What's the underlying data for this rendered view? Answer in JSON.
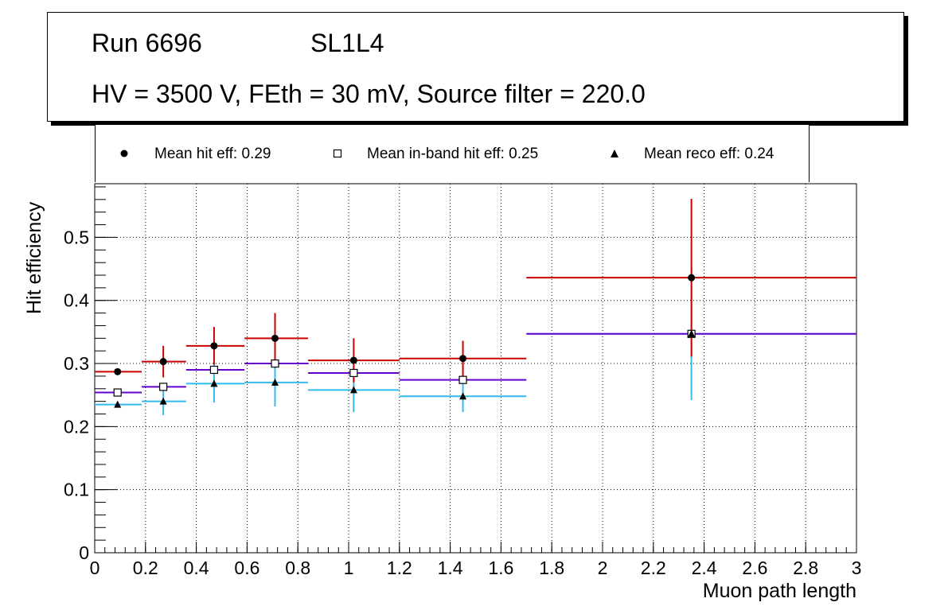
{
  "header": {
    "run": "Run 6696",
    "layer": "SL1L4",
    "conditions": "HV = 3500 V, FEth = 30 mV, Source filter = 220.0"
  },
  "legend": {
    "items": [
      {
        "label": "Mean hit  eff: 0.29",
        "marker": "filled-circle"
      },
      {
        "label": "Mean in-band hit eff: 0.25",
        "marker": "open-square"
      },
      {
        "label": "Mean reco eff: 0.24",
        "marker": "filled-triangle"
      }
    ]
  },
  "chart_data": {
    "type": "scatter",
    "xlabel": "Muon path length",
    "ylabel": "Hit efficiency",
    "xlim": [
      0,
      3
    ],
    "ylim": [
      0,
      0.585
    ],
    "xticks": [
      "0",
      "0.2",
      "0.4",
      "0.6",
      "0.8",
      "1",
      "1.2",
      "1.4",
      "1.6",
      "1.8",
      "2",
      "2.2",
      "2.4",
      "2.6",
      "2.8",
      "3"
    ],
    "yticks": [
      "0",
      "0.1",
      "0.2",
      "0.3",
      "0.4",
      "0.5"
    ],
    "grid": true,
    "colors": {
      "hit": "#cc0000",
      "inband": "#6600cc",
      "reco": "#33bbee"
    },
    "bins": [
      {
        "xlo": 0.0,
        "xhi": 0.185,
        "x": 0.09
      },
      {
        "xlo": 0.185,
        "xhi": 0.36,
        "x": 0.27
      },
      {
        "xlo": 0.36,
        "xhi": 0.59,
        "x": 0.47
      },
      {
        "xlo": 0.59,
        "xhi": 0.84,
        "x": 0.71
      },
      {
        "xlo": 0.84,
        "xhi": 1.2,
        "x": 1.02
      },
      {
        "xlo": 1.2,
        "xhi": 1.7,
        "x": 1.45
      },
      {
        "xlo": 1.7,
        "xhi": 3.0,
        "x": 2.35
      }
    ],
    "series": [
      {
        "name": "Mean hit  eff",
        "key": "hit",
        "marker": "circle",
        "values": [
          0.287,
          0.303,
          0.328,
          0.34,
          0.305,
          0.308,
          0.436
        ],
        "err": [
          0.0,
          0.025,
          0.03,
          0.04,
          0.035,
          0.028,
          0.125
        ]
      },
      {
        "name": "Mean in-band hit eff",
        "key": "inband",
        "marker": "square",
        "values": [
          0.254,
          0.263,
          0.29,
          0.3,
          0.285,
          0.274,
          0.347
        ],
        "err": [
          0.0,
          0.0,
          0.0,
          0.0,
          0.0,
          0.0,
          0.0
        ]
      },
      {
        "name": "Mean reco eff",
        "key": "reco",
        "marker": "triangle",
        "values": [
          0.235,
          0.24,
          0.268,
          0.27,
          0.258,
          0.248,
          0.347
        ],
        "err": [
          0.0,
          0.022,
          0.03,
          0.038,
          0.035,
          0.025,
          0.105
        ]
      }
    ]
  }
}
